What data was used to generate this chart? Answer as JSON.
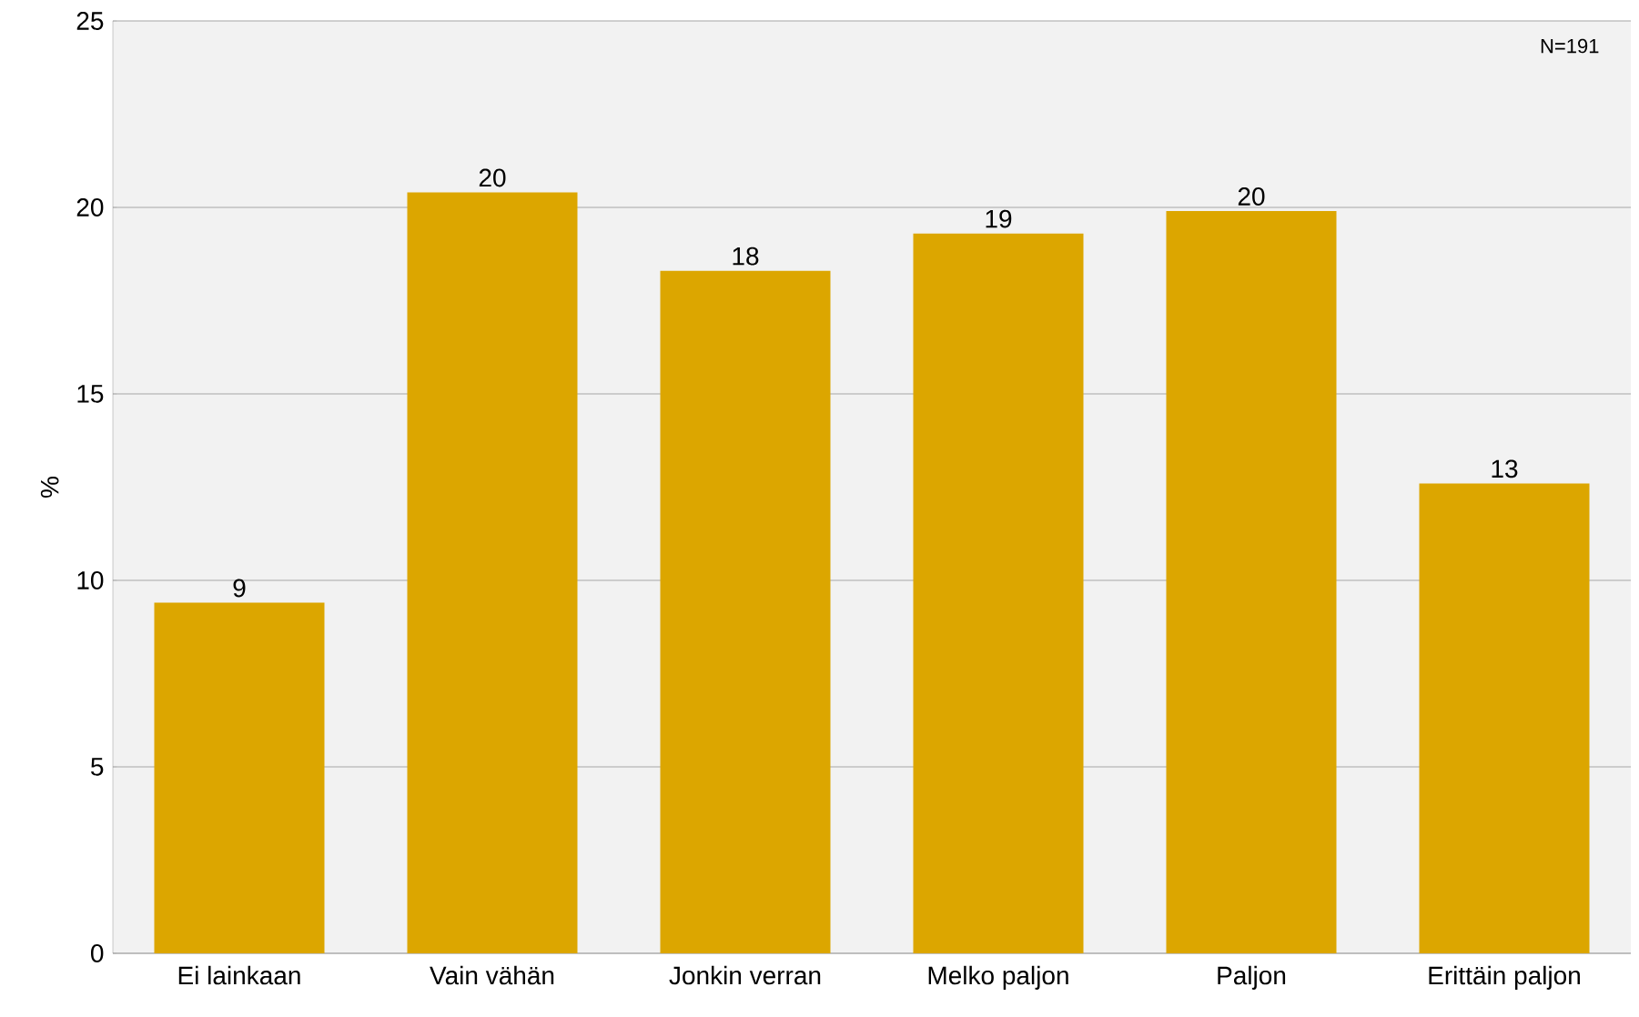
{
  "chart_data": {
    "type": "bar",
    "ylabel": "%",
    "annotations": [
      "N=191"
    ],
    "categories": [
      "Ei lainkaan",
      "Vain vähän",
      "Jonkin verran",
      "Melko paljon",
      "Paljon",
      "Erittäin paljon"
    ],
    "values": [
      9.4,
      20.4,
      18.3,
      19.3,
      19.9,
      12.6
    ],
    "value_labels": [
      "9",
      "20",
      "18",
      "19",
      "20",
      "13"
    ],
    "color": "#dca600",
    "ylim": [
      0,
      25
    ],
    "yticks": [
      0,
      5,
      10,
      15,
      20,
      25
    ],
    "grid": "y"
  }
}
